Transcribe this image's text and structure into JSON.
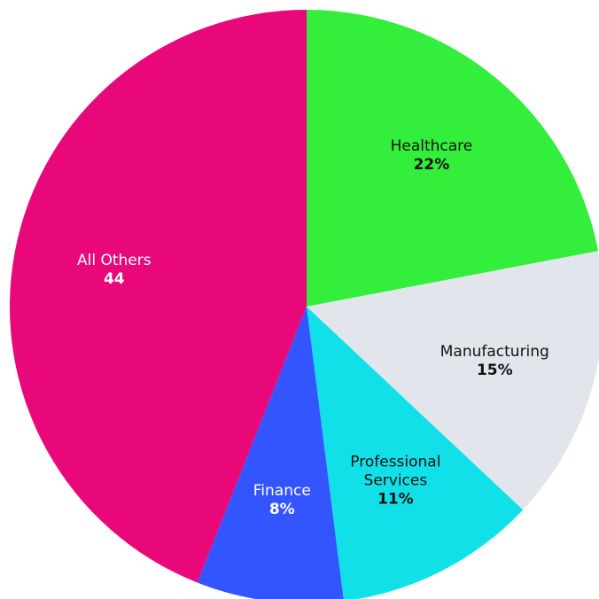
{
  "chart_data": {
    "type": "pie",
    "categories": [
      "Healthcare",
      "Manufacturing",
      "Professional Services",
      "Finance",
      "All Others"
    ],
    "values": [
      22,
      15,
      11,
      8,
      44
    ],
    "value_labels": [
      "22%",
      "15%",
      "11%",
      "8%",
      "44"
    ],
    "colors": [
      "#33ee3a",
      "#e2e6ec",
      "#12e0e8",
      "#3355ff",
      "#e8087a"
    ]
  }
}
